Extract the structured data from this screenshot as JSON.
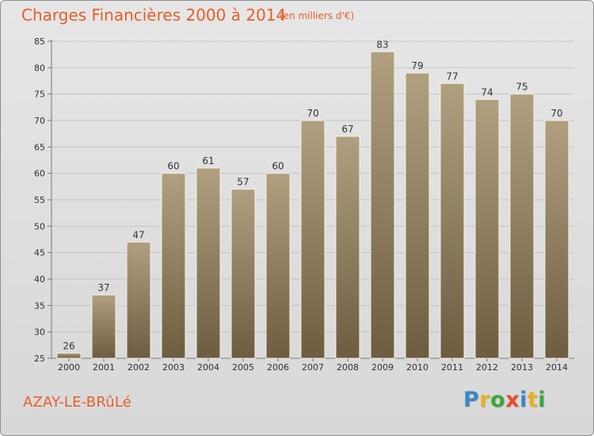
{
  "header": {
    "title": "Charges Financières 2000 à 2014",
    "subtitle": "(en milliers d'€)"
  },
  "footer": {
    "location": "AZAY-LE-BRûLé",
    "brand_letters": [
      "P",
      "r",
      "o",
      "x",
      "i",
      "t",
      "i"
    ]
  },
  "colors": {
    "title": "#e65f2a",
    "bar_light": "#b0a080",
    "bar_dark": "#6e5c40",
    "grid": "#c4c4c4",
    "brand": [
      "#3a86c8",
      "#e8b020",
      "#3aa83a",
      "#e84a2a",
      "#3a86c8",
      "#e8b020",
      "#3aa83a"
    ]
  },
  "chart_data": {
    "type": "bar",
    "title": "Charges Financières 2000 à 2014",
    "subtitle": "(en milliers d'€)",
    "categories": [
      "2000",
      "2001",
      "2002",
      "2003",
      "2004",
      "2005",
      "2006",
      "2007",
      "2008",
      "2009",
      "2010",
      "2011",
      "2012",
      "2013",
      "2014"
    ],
    "values": [
      26,
      37,
      47,
      60,
      61,
      57,
      60,
      70,
      67,
      83,
      79,
      77,
      74,
      75,
      70
    ],
    "ylim": [
      25,
      85
    ],
    "yticks": [
      25,
      30,
      35,
      40,
      45,
      50,
      55,
      60,
      65,
      70,
      75,
      80,
      85
    ],
    "grid": true,
    "data_labels": true,
    "xlabel": "",
    "ylabel": ""
  }
}
